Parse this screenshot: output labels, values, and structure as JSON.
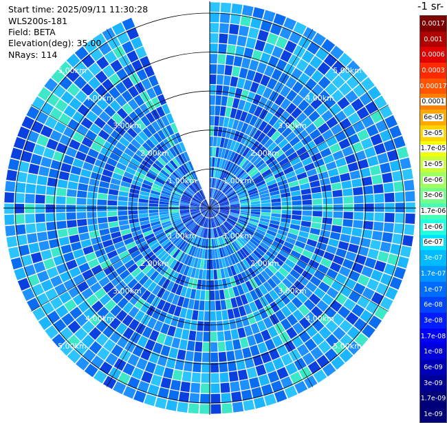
{
  "header": {
    "start_time": "Start time: 2025/09/11 11:30:28",
    "device": "WLS200s-181",
    "field": "Field: BETA",
    "elevation": "Elevation(deg): 35.00",
    "nrays": "NRays: 114",
    "colorbar_title_fragment": "-1 sr-"
  },
  "chart_data": {
    "type": "heatmap",
    "subtype": "polar-ppi",
    "range_labels": [
      "1.00km",
      "2.00km",
      "3.00km",
      "4.00km",
      "5.00km"
    ],
    "range_rings_km": [
      1,
      2,
      3,
      4,
      5
    ],
    "max_range_km": 5.3,
    "nrays": 114,
    "missing_sector_deg": [
      337,
      359
    ],
    "grid": true,
    "colorbar": {
      "placement": "right",
      "ticks": [
        "0.0017",
        "0.001",
        "0.0006",
        "0.0003",
        "0.00017",
        "0.0001",
        "6e-05",
        "3e-05",
        "1.7e-05",
        "1e-05",
        "6e-06",
        "3e-06",
        "1.7e-06",
        "1e-06",
        "6e-07",
        "3e-07",
        "1.7e-07",
        "1e-07",
        "6e-08",
        "3e-08",
        "1.7e-08",
        "1e-08",
        "6e-09",
        "3e-09",
        "1.7e-09",
        "1e-09"
      ],
      "colors": [
        "#7f0000",
        "#b00000",
        "#e00000",
        "#ff2a00",
        "#ff5500",
        "#ff7f00",
        "#ffa900",
        "#ffd400",
        "#f2ff0d",
        "#c8ff37",
        "#9eff61",
        "#74ff8b",
        "#4affb5",
        "#20ffdf",
        "#00e4ff",
        "#00bcff",
        "#0094ff",
        "#006cff",
        "#0044ff",
        "#001cff",
        "#0000f6",
        "#0000d8",
        "#0000b6",
        "#000096",
        "#000078"
      ],
      "label_text_color_dark_bg": "#ffffff"
    },
    "dominant_colors": [
      "#0a6cf0",
      "#1e90ff",
      "#1bb6ff",
      "#0a3fe0",
      "#3ce8c8"
    ]
  }
}
